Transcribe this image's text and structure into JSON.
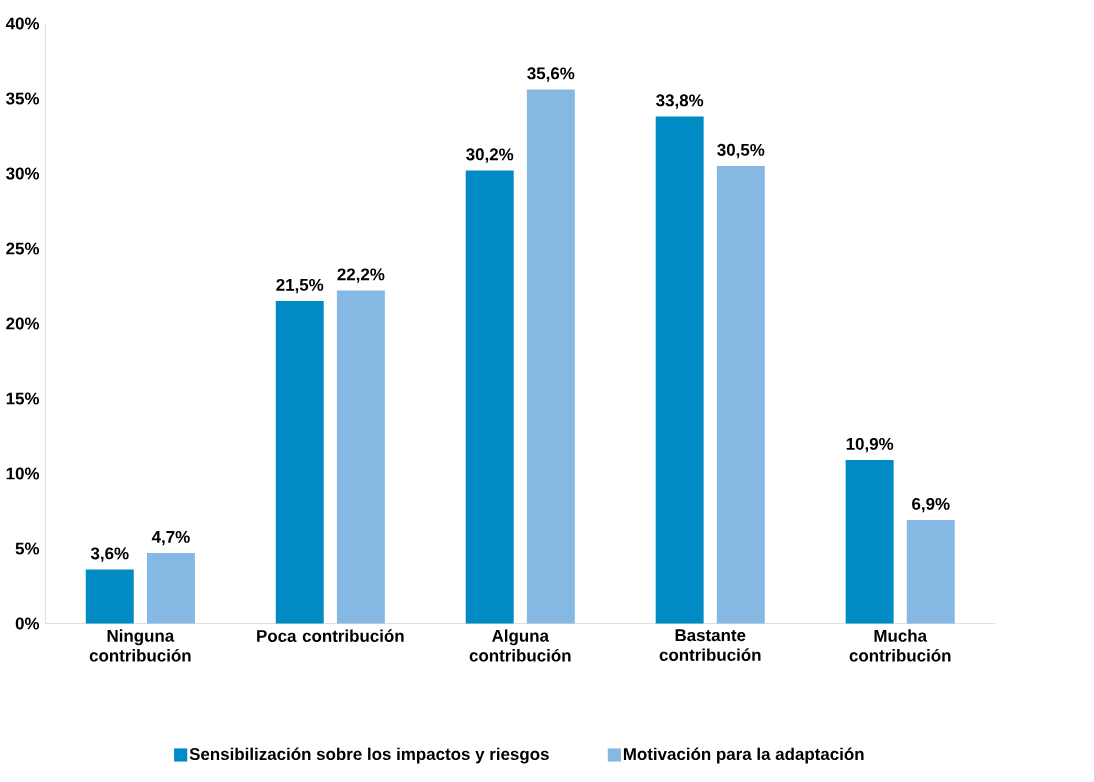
{
  "chart_data": {
    "type": "bar",
    "categories": [
      "Ninguna contribución",
      "Poca contribución",
      "Alguna contribución",
      "Bastante contribución",
      "Mucha contribución"
    ],
    "series": [
      {
        "name": "Sensibilización sobre los impactos y riesgos",
        "color": "#008bc4",
        "values": [
          3.6,
          21.5,
          30.2,
          33.8,
          10.9
        ],
        "value_labels": [
          "3,6%",
          "21,5%",
          "30,2%",
          "33,8%",
          "10,9%"
        ]
      },
      {
        "name": "Motivación para la adaptación",
        "color": "#85b8e2",
        "values": [
          4.7,
          22.2,
          35.6,
          30.5,
          6.9
        ],
        "value_labels": [
          "4,7%",
          "22,2%",
          "35,6%",
          "30,5%",
          "6,9%"
        ]
      }
    ],
    "ylim": [
      0,
      40
    ],
    "yticks": [
      {
        "value": 0,
        "label": "0%"
      },
      {
        "value": 5,
        "label": "5%"
      },
      {
        "value": 10,
        "label": "10%"
      },
      {
        "value": 15,
        "label": "15%"
      },
      {
        "value": 20,
        "label": "20%"
      },
      {
        "value": 25,
        "label": "25%"
      },
      {
        "value": 30,
        "label": "30%"
      },
      {
        "value": 35,
        "label": "35%"
      },
      {
        "value": 40,
        "label": "40%"
      }
    ],
    "grid": false,
    "legend": "bottom"
  }
}
